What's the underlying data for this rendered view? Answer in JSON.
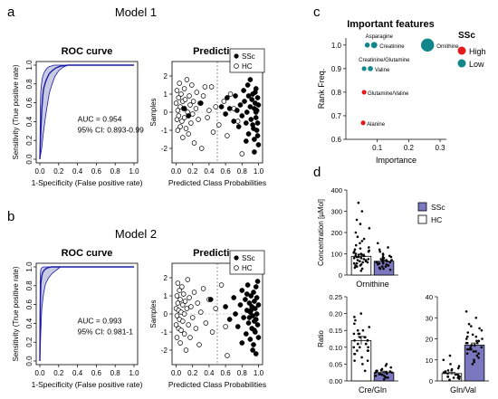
{
  "chart_data": [
    {
      "id": "a_roc",
      "type": "line",
      "panel": "a",
      "model_title": "Model 1",
      "title": "ROC curve",
      "xlabel": "1-Specificity (False positive rate)",
      "ylabel": "Sensitivity (True positive rate)",
      "xlim": [
        0,
        1
      ],
      "ylim": [
        0,
        1
      ],
      "xticks": [
        "0.0",
        "0.2",
        "0.4",
        "0.6",
        "0.8",
        "1.0"
      ],
      "yticks": [
        "0.0",
        "0.2",
        "0.4",
        "0.6",
        "0.8",
        "1.0"
      ],
      "annotations": [
        "AUC = 0.954",
        "95% CI: 0.893-0.99"
      ],
      "colors": {
        "curve": "#1a1aa6",
        "band": "#9aa0c8"
      },
      "series": [
        {
          "x": [
            0,
            0.01,
            0.02,
            0.03,
            0.04,
            0.06,
            0.08,
            0.1,
            0.13,
            0.17,
            0.22,
            0.3,
            1
          ],
          "y": [
            0,
            0.3,
            0.52,
            0.66,
            0.75,
            0.82,
            0.87,
            0.91,
            0.94,
            0.97,
            0.99,
            1,
            1
          ]
        },
        {
          "x": [
            0,
            0.005,
            0.01,
            0.02,
            0.03,
            0.05,
            0.07,
            0.09,
            0.12,
            0.15,
            0.2,
            1
          ],
          "y": [
            0,
            0.55,
            0.72,
            0.82,
            0.88,
            0.93,
            0.96,
            0.98,
            0.99,
            1,
            1,
            1
          ]
        },
        {
          "x": [
            0,
            0.02,
            0.04,
            0.06,
            0.08,
            0.1,
            0.13,
            0.16,
            0.2,
            0.25,
            0.3,
            1
          ],
          "y": [
            0,
            0.12,
            0.3,
            0.45,
            0.58,
            0.7,
            0.8,
            0.88,
            0.94,
            0.98,
            1,
            1
          ]
        }
      ]
    },
    {
      "id": "a_pred",
      "type": "scatter",
      "panel": "a",
      "title": "Prediction",
      "xlabel": "Predicted Class Probabilities",
      "ylabel": "Samples",
      "xlim": [
        -0.05,
        1.05
      ],
      "ylim": [
        -2.8,
        2.8
      ],
      "xticks": [
        "0.0",
        "0.2",
        "0.4",
        "0.6",
        "0.8",
        "1.0"
      ],
      "yticks": [
        "-2",
        "-1",
        "0",
        "1",
        "2"
      ],
      "legend": [
        "SSc",
        "HC"
      ],
      "legend_position": "top-right",
      "threshold_x": 0.5,
      "series": [
        {
          "name": "SSc",
          "marker": "filled",
          "x": [
            0.55,
            0.6,
            0.62,
            0.65,
            0.7,
            0.72,
            0.74,
            0.76,
            0.78,
            0.8,
            0.82,
            0.83,
            0.85,
            0.86,
            0.87,
            0.88,
            0.9,
            0.91,
            0.92,
            0.93,
            0.94,
            0.95,
            0.95,
            0.96,
            0.97,
            0.97,
            0.98,
            0.98,
            0.99,
            0.99,
            1.0,
            1.0,
            0.95,
            0.9,
            0.85,
            0.99,
            0.97,
            0.93,
            0.88,
            0.96,
            0.3,
            0.15,
            0.1
          ],
          "y": [
            0.3,
            -0.1,
            0.8,
            0.2,
            -0.5,
            0.9,
            0.1,
            -0.8,
            0.4,
            -0.2,
            1.2,
            0.6,
            -0.6,
            0.0,
            1.5,
            -1.2,
            0.3,
            -0.4,
            0.7,
            1.0,
            -0.9,
            0.2,
            -1.5,
            0.5,
            -0.3,
            1.3,
            -1.0,
            0.1,
            -0.6,
            0.8,
            -1.8,
            0.4,
            -2.2,
            1.8,
            -1.6,
            -1.3,
            0.0,
            -0.7,
            0.9,
            1.1,
            0.5,
            -0.2,
            0.2
          ]
        },
        {
          "name": "HC",
          "marker": "open",
          "x": [
            0.0,
            0.01,
            0.01,
            0.02,
            0.02,
            0.03,
            0.03,
            0.04,
            0.05,
            0.05,
            0.06,
            0.07,
            0.08,
            0.08,
            0.09,
            0.1,
            0.1,
            0.11,
            0.12,
            0.13,
            0.14,
            0.15,
            0.16,
            0.17,
            0.18,
            0.19,
            0.2,
            0.21,
            0.22,
            0.24,
            0.25,
            0.27,
            0.29,
            0.31,
            0.33,
            0.35,
            0.38,
            0.4,
            0.43,
            0.45,
            0.48,
            0.52,
            0.58,
            0.62,
            0.66,
            0.7,
            0.75,
            0.8
          ],
          "y": [
            0.5,
            -0.4,
            1.2,
            0.1,
            -1.0,
            0.8,
            -0.2,
            1.6,
            0.3,
            -0.8,
            1.0,
            -0.5,
            0.6,
            -1.4,
            0.2,
            1.3,
            -0.3,
            0.7,
            -0.9,
            1.8,
            0.0,
            -1.2,
            0.9,
            0.4,
            -0.6,
            1.5,
            -0.1,
            0.6,
            -1.7,
            0.2,
            1.1,
            -0.4,
            0.5,
            -2.0,
            0.9,
            1.4,
            -0.3,
            0.1,
            1.4,
            -1.1,
            0.3,
            -0.7,
            0.6,
            -1.3,
            1.0,
            0.2,
            -0.5,
            -2.3
          ]
        }
      ]
    },
    {
      "id": "b_roc",
      "type": "line",
      "panel": "b",
      "model_title": "Model 2",
      "title": "ROC curve",
      "xlabel": "1-Specificity (False positive rate)",
      "ylabel": "Sensitivity (True positive rate)",
      "xlim": [
        0,
        1
      ],
      "ylim": [
        0,
        1
      ],
      "xticks": [
        "0.0",
        "0.2",
        "0.4",
        "0.6",
        "0.8",
        "1.0"
      ],
      "yticks": [
        "0.0",
        "0.2",
        "0.4",
        "0.6",
        "0.8",
        "1.0"
      ],
      "annotations": [
        "AUC = 0.993",
        "95% CI: 0.981-1"
      ],
      "colors": {
        "curve": "#1a1aa6",
        "band": "#9aa0c8"
      },
      "series": [
        {
          "x": [
            0,
            0.005,
            0.01,
            0.02,
            0.03,
            0.05,
            0.08,
            0.12,
            0.18,
            1
          ],
          "y": [
            0,
            0.6,
            0.82,
            0.9,
            0.94,
            0.97,
            0.99,
            1,
            1,
            1
          ]
        },
        {
          "x": [
            0,
            0.003,
            0.006,
            0.01,
            0.02,
            0.04,
            0.06,
            1
          ],
          "y": [
            0,
            0.85,
            0.93,
            0.97,
            0.99,
            1,
            1,
            1
          ]
        },
        {
          "x": [
            0,
            0.01,
            0.02,
            0.04,
            0.06,
            0.09,
            0.13,
            0.18,
            0.22,
            1
          ],
          "y": [
            0,
            0.3,
            0.55,
            0.72,
            0.82,
            0.88,
            0.93,
            0.97,
            1,
            1
          ]
        }
      ]
    },
    {
      "id": "b_pred",
      "type": "scatter",
      "panel": "b",
      "title": "Prediction",
      "xlabel": "Predicted Class Probabilities",
      "ylabel": "Samples",
      "xlim": [
        -0.05,
        1.05
      ],
      "ylim": [
        -2.8,
        2.8
      ],
      "xticks": [
        "0.0",
        "0.2",
        "0.4",
        "0.6",
        "0.8",
        "1.0"
      ],
      "yticks": [
        "-2",
        "-1",
        "0",
        "1",
        "2"
      ],
      "legend": [
        "SSc",
        "HC"
      ],
      "legend_position": "top-right",
      "threshold_x": 0.5,
      "series": [
        {
          "name": "SSc",
          "marker": "filled",
          "x": [
            0.6,
            0.65,
            0.7,
            0.72,
            0.75,
            0.78,
            0.8,
            0.82,
            0.84,
            0.85,
            0.86,
            0.87,
            0.88,
            0.89,
            0.9,
            0.9,
            0.91,
            0.92,
            0.92,
            0.93,
            0.94,
            0.94,
            0.95,
            0.95,
            0.96,
            0.96,
            0.97,
            0.97,
            0.98,
            0.98,
            0.99,
            0.99,
            1.0,
            1.0,
            0.93,
            0.89,
            0.86,
            0.95,
            0.97,
            0.91,
            0.8,
            0.42
          ],
          "y": [
            0.4,
            -0.3,
            0.9,
            0.0,
            -0.7,
            0.5,
            1.3,
            -0.2,
            0.8,
            -1.1,
            0.2,
            1.6,
            -0.5,
            0.6,
            -1.4,
            0.1,
            1.0,
            -0.8,
            0.4,
            -0.1,
            1.2,
            -1.7,
            0.7,
            -0.4,
            0.3,
            -1.0,
            1.5,
            -2.2,
            0.0,
            0.9,
            -0.6,
            1.8,
            -1.3,
            0.5,
            -2.0,
            -0.2,
            1.1,
            -0.9,
            -0.3,
            0.2,
            -1.6,
            0.8
          ]
        },
        {
          "name": "HC",
          "marker": "open",
          "x": [
            0.0,
            0.0,
            0.01,
            0.01,
            0.01,
            0.02,
            0.02,
            0.03,
            0.03,
            0.04,
            0.04,
            0.05,
            0.05,
            0.06,
            0.06,
            0.07,
            0.08,
            0.08,
            0.09,
            0.1,
            0.1,
            0.11,
            0.12,
            0.13,
            0.14,
            0.15,
            0.16,
            0.17,
            0.18,
            0.2,
            0.22,
            0.24,
            0.26,
            0.28,
            0.3,
            0.33,
            0.36,
            0.4,
            0.44,
            0.48,
            0.55,
            0.6,
            0.62
          ],
          "y": [
            0.3,
            -0.6,
            1.0,
            -0.1,
            -1.3,
            0.6,
            1.7,
            -0.8,
            0.2,
            1.3,
            -0.3,
            0.8,
            -1.6,
            0.1,
            -0.9,
            1.5,
            0.5,
            -0.4,
            1.1,
            -1.1,
            0.0,
            0.7,
            -2.0,
            0.3,
            1.9,
            -0.6,
            0.9,
            -1.3,
            0.4,
            -0.2,
            1.2,
            -0.8,
            0.6,
            -1.7,
            0.1,
            1.4,
            -0.5,
            0.8,
            -1.0,
            0.3,
            1.6,
            -0.7,
            -2.3
          ]
        }
      ]
    },
    {
      "id": "c_importance",
      "type": "scatter",
      "panel": "c",
      "title": "Important features",
      "xlabel": "Importance",
      "ylabel": "Rank Freq.",
      "xlim": [
        0,
        0.32
      ],
      "ylim": [
        0.6,
        1.03
      ],
      "xticks": [
        {
          "v": 0.1,
          "label": "0.1"
        },
        {
          "v": 0.2,
          "label": "0.2"
        },
        {
          "v": 0.3,
          "label": "0.3"
        }
      ],
      "yticks": [
        {
          "v": 0.6,
          "label": "0.6"
        },
        {
          "v": 0.7,
          "label": "0.7"
        },
        {
          "v": 0.8,
          "label": "0.8"
        },
        {
          "v": 0.9,
          "label": "0.9"
        },
        {
          "v": 1.0,
          "label": "1.0"
        }
      ],
      "legend_title": "SSc",
      "legend": [
        {
          "label": "High",
          "color": "#e41a1c"
        },
        {
          "label": "Low",
          "color": "#11868a"
        }
      ],
      "points": [
        {
          "label": "Asparagine",
          "x": 0.068,
          "y": 1.0,
          "size": 1.0,
          "group": "Low"
        },
        {
          "label": "Creatinine",
          "x": 0.09,
          "y": 1.0,
          "size": 1.3,
          "group": "Low"
        },
        {
          "label": "Ornithine",
          "x": 0.26,
          "y": 1.0,
          "size": 3.0,
          "group": "Low"
        },
        {
          "label": "Creatinine/Glutamine",
          "x": 0.058,
          "y": 0.9,
          "size": 0.9,
          "group": "Low"
        },
        {
          "label": "Valine",
          "x": 0.078,
          "y": 0.9,
          "size": 1.0,
          "group": "Low"
        },
        {
          "label": "Glutamine/Valine",
          "x": 0.058,
          "y": 0.8,
          "size": 0.9,
          "group": "High"
        },
        {
          "label": "Alanine",
          "x": 0.055,
          "y": 0.67,
          "size": 0.9,
          "group": "High"
        }
      ]
    },
    {
      "id": "d_ornithine",
      "type": "bar",
      "panel": "d",
      "categories": [
        "HC",
        "SSc"
      ],
      "values": [
        88,
        65
      ],
      "errors": [
        10,
        6
      ],
      "ylabel": "Concentration [µMol]",
      "xlabel": "Ornithine",
      "ylim": [
        0,
        400
      ],
      "yticks": [
        "0",
        "100",
        "200",
        "300",
        "400"
      ],
      "legend": [
        {
          "label": "SSc",
          "color": "#7b78c0"
        },
        {
          "label": "HC",
          "color": "#ffffff"
        }
      ],
      "colors": {
        "HC": "#ffffff",
        "SSc": "#7b78c0"
      },
      "points": {
        "HC": [
          20,
          30,
          35,
          40,
          45,
          50,
          55,
          60,
          60,
          65,
          70,
          70,
          75,
          80,
          80,
          85,
          90,
          90,
          95,
          100,
          100,
          105,
          110,
          115,
          120,
          125,
          130,
          140,
          150,
          160,
          170,
          180,
          200,
          220,
          240,
          260,
          300,
          340,
          45,
          65,
          85,
          95,
          110,
          75,
          55
        ],
        "SSc": [
          25,
          30,
          35,
          40,
          40,
          45,
          50,
          50,
          55,
          55,
          60,
          60,
          65,
          65,
          70,
          70,
          75,
          75,
          80,
          85,
          90,
          95,
          100,
          110,
          120,
          130,
          150,
          30,
          45,
          60,
          70,
          85
        ]
      }
    },
    {
      "id": "d_cregln",
      "type": "bar",
      "panel": "d",
      "categories": [
        "HC",
        "SSc"
      ],
      "values": [
        0.12,
        0.025
      ],
      "errors": [
        0.012,
        0.004
      ],
      "ylabel": "Ratio",
      "xlabel": "Cre/Gln",
      "ylim": [
        0,
        0.25
      ],
      "yticks": [
        "0.00",
        "0.05",
        "0.10",
        "0.15",
        "0.20",
        "0.25"
      ],
      "colors": {
        "HC": "#ffffff",
        "SSc": "#7b78c0"
      },
      "points": {
        "HC": [
          0.03,
          0.05,
          0.06,
          0.07,
          0.08,
          0.09,
          0.09,
          0.1,
          0.1,
          0.11,
          0.11,
          0.12,
          0.12,
          0.13,
          0.13,
          0.14,
          0.14,
          0.15,
          0.15,
          0.16,
          0.17,
          0.18,
          0.19,
          0.2,
          0.06,
          0.08,
          0.1,
          0.12,
          0.14,
          0.11,
          0.09,
          0.13
        ],
        "SSc": [
          0.005,
          0.01,
          0.012,
          0.015,
          0.018,
          0.02,
          0.02,
          0.022,
          0.025,
          0.025,
          0.028,
          0.03,
          0.032,
          0.035,
          0.04,
          0.045,
          0.05,
          0.015,
          0.02,
          0.03,
          0.01,
          0.025
        ]
      }
    },
    {
      "id": "d_glnval",
      "type": "bar",
      "panel": "d",
      "categories": [
        "HC",
        "SSc"
      ],
      "values": [
        3.5,
        17
      ],
      "errors": [
        0.5,
        1
      ],
      "xlabel": "Gln/Val",
      "ylim": [
        0,
        40
      ],
      "yticks": [
        "0",
        "10",
        "20",
        "30",
        "40"
      ],
      "colors": {
        "HC": "#ffffff",
        "SSc": "#7b78c0"
      },
      "points": {
        "HC": [
          0.5,
          1,
          1.5,
          2,
          2,
          2.5,
          3,
          3,
          3.5,
          4,
          4,
          4.5,
          5,
          5.5,
          6,
          7,
          8,
          10,
          12,
          2,
          3,
          4,
          5,
          1.5
        ],
        "SSc": [
          8,
          9,
          10,
          11,
          12,
          13,
          14,
          14,
          15,
          15,
          16,
          16,
          17,
          17,
          18,
          18,
          19,
          19,
          20,
          20,
          21,
          22,
          23,
          24,
          25,
          26,
          27,
          30,
          33,
          13,
          15,
          18,
          21
        ]
      }
    }
  ],
  "panel_labels": [
    "a",
    "b",
    "c",
    "d"
  ]
}
